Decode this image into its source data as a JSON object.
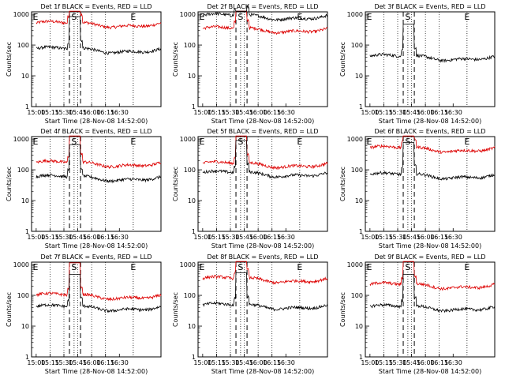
{
  "chart_data": {
    "type": "line",
    "scale": "log",
    "xtick_labels": [
      "15:00",
      "15:15",
      "15:30",
      "15:45",
      "16:00",
      "16:15",
      "16:30"
    ],
    "xrange_minutes": [
      -5,
      135
    ],
    "ytick_labels": [
      "1",
      "10",
      "100",
      "1000"
    ],
    "ylim": [
      1,
      1200
    ],
    "markers": [
      {
        "label": "E",
        "minute": -5
      },
      {
        "label": "S",
        "minute": 41
      },
      {
        "label": "E",
        "minute": 105
      }
    ],
    "gap_minutes": [
      36,
      48
    ],
    "panels": [
      {
        "title": "Det 1f BLACK = Events, RED = LLD",
        "ylabel": "Counts/sec",
        "xlabel": "Start Time (28-Nov-08 14:52:00)",
        "events_base": 70,
        "lld_base": 480
      },
      {
        "title": "Det 2f BLACK = Events, RED = LLD",
        "ylabel": "Counts/sec",
        "xlabel": "Start Time (28-Nov-08 14:52:00)",
        "events_base": 850,
        "lld_base": 320
      },
      {
        "title": "Det 3f BLACK = Events, RED = LLD",
        "ylabel": "Counts/sec",
        "xlabel": "Start Time (28-Nov-08 14:52:00)",
        "events_base": 40,
        "lld_base": null
      },
      {
        "title": "Det 4f BLACK = Events, RED = LLD",
        "ylabel": "Counts/sec",
        "xlabel": "Start Time (28-Nov-08 14:52:00)",
        "events_base": 55,
        "lld_base": 160
      },
      {
        "title": "Det 5f BLACK = Events, RED = LLD",
        "ylabel": "Counts/sec",
        "xlabel": "Start Time (28-Nov-08 14:52:00)",
        "events_base": 75,
        "lld_base": 150
      },
      {
        "title": "Det 6f BLACK = Events, RED = LLD",
        "ylabel": "Counts/sec",
        "xlabel": "Start Time (28-Nov-08 14:52:00)",
        "events_base": 65,
        "lld_base": 480
      },
      {
        "title": "Det 7f BLACK = Events, RED = LLD",
        "ylabel": "Counts/sec",
        "xlabel": "Start Time (28-Nov-08 14:52:00)",
        "events_base": 40,
        "lld_base": 95
      },
      {
        "title": "Det 8f BLACK = Events, RED = LLD",
        "ylabel": "Counts/sec",
        "xlabel": "Start Time (28-Nov-08 14:52:00)",
        "events_base": 45,
        "lld_base": 330
      },
      {
        "title": "Det 9f BLACK = Events, RED = LLD",
        "ylabel": "Counts/sec",
        "xlabel": "Start Time (28-Nov-08 14:52:00)",
        "events_base": 40,
        "lld_base": 210
      }
    ]
  }
}
